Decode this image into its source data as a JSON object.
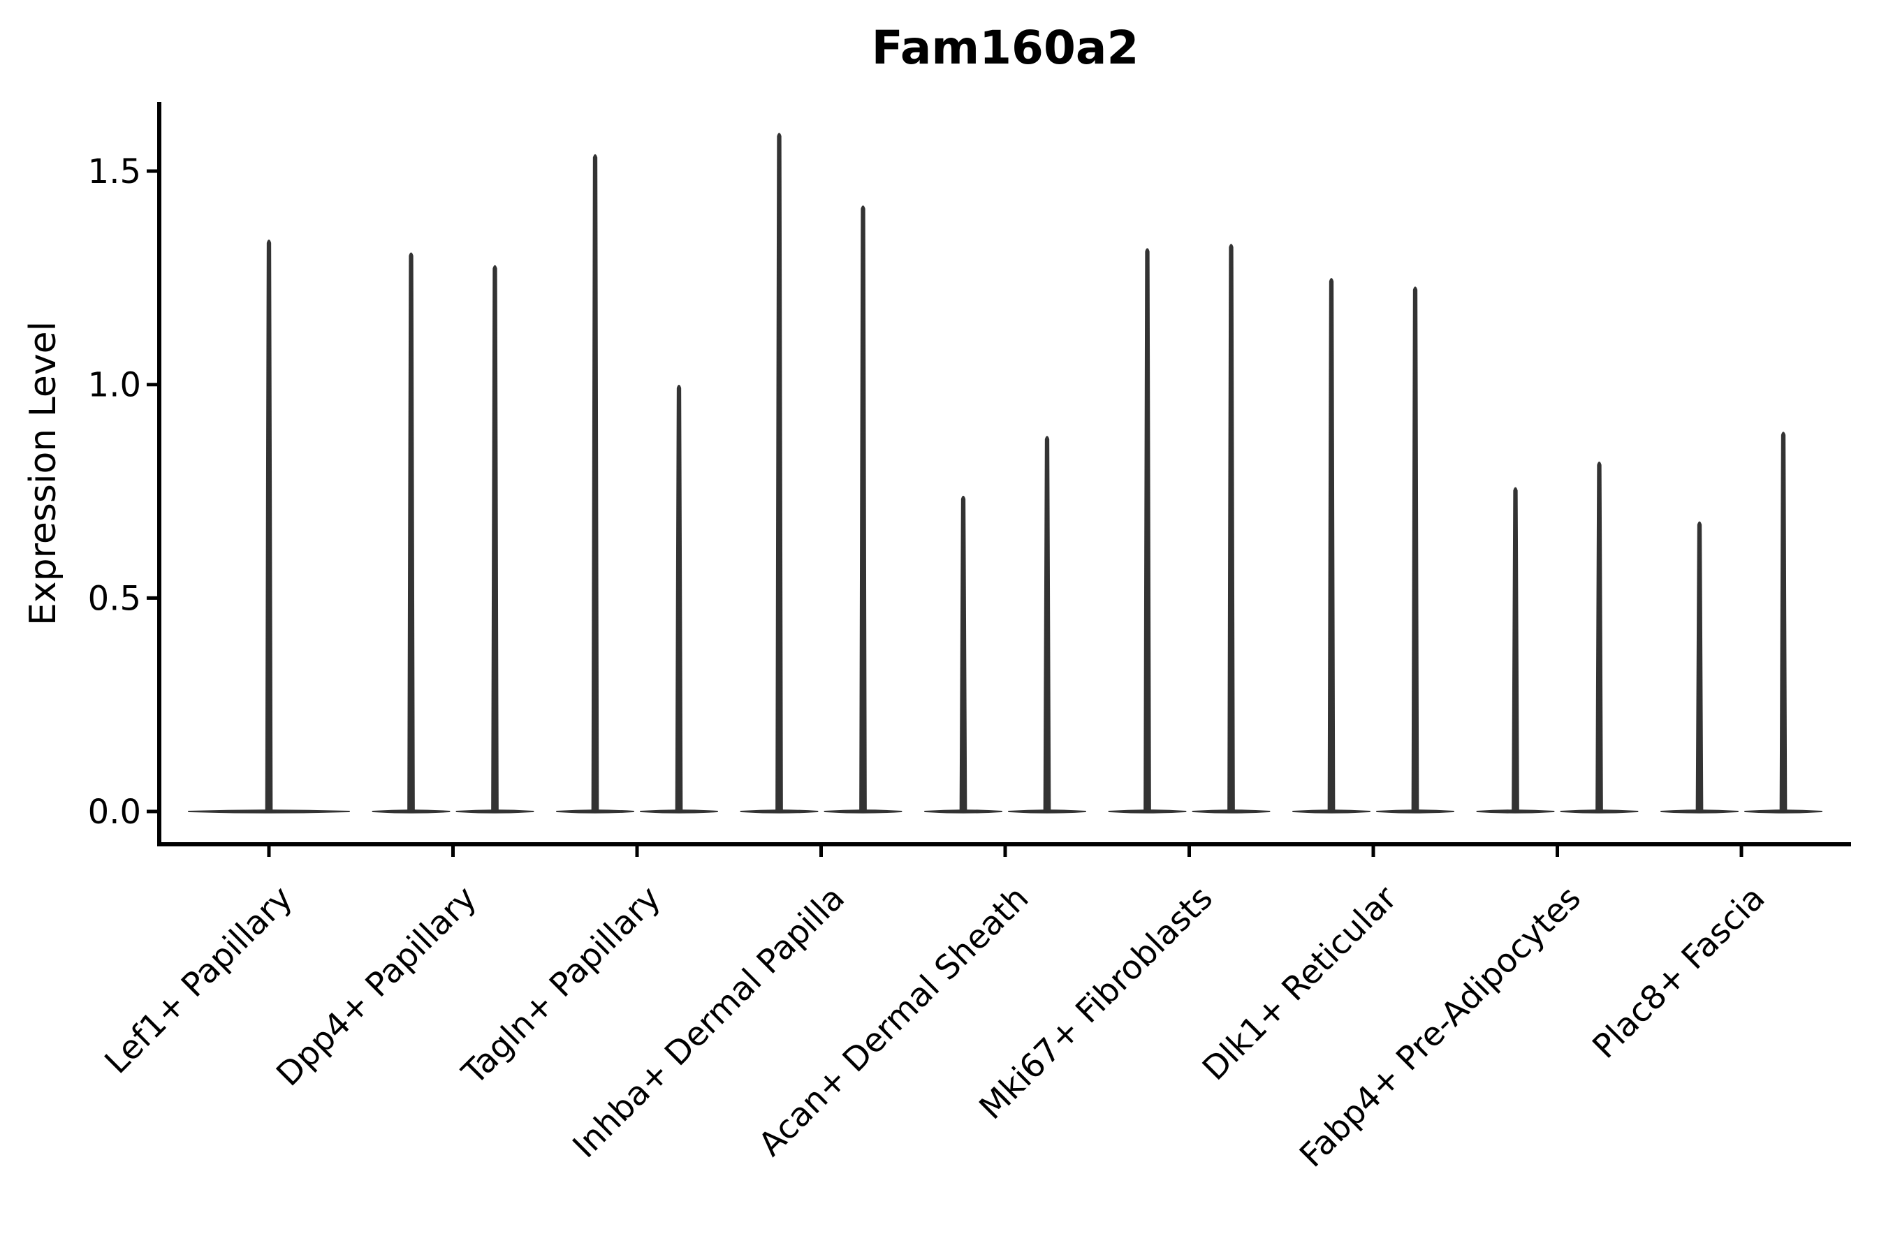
{
  "chart_data": {
    "type": "violin",
    "title": "Fam160a2",
    "ylabel": "Expression Level",
    "xlabel": "",
    "ytick_labels": [
      "0.0",
      "0.5",
      "1.0",
      "1.5"
    ],
    "ytick_values": [
      0.0,
      0.5,
      1.0,
      1.5
    ],
    "ylim": [
      -0.08,
      1.66
    ],
    "grid": "off",
    "legend": "none",
    "violin_color": "#333333",
    "axis_color": "#000000",
    "description": "Violin plot; each violin's density mass sits at 0 (flat wide base) with a thin vertical spike reaching its maximum expression value.",
    "categories": [
      {
        "label": "Lef1+ Papillary",
        "violins": [
          {
            "max": 1.34
          }
        ]
      },
      {
        "label": "Dpp4+ Papillary",
        "violins": [
          {
            "max": 1.31
          },
          {
            "max": 1.28
          }
        ]
      },
      {
        "label": "Tagln+ Papillary",
        "violins": [
          {
            "max": 1.54
          },
          {
            "max": 1.0
          }
        ]
      },
      {
        "label": "Inhba+ Dermal Papilla",
        "violins": [
          {
            "max": 1.59
          },
          {
            "max": 1.42
          }
        ]
      },
      {
        "label": "Acan+ Dermal Sheath",
        "violins": [
          {
            "max": 0.74
          },
          {
            "max": 0.88
          }
        ]
      },
      {
        "label": "Mki67+ Fibroblasts",
        "violins": [
          {
            "max": 1.32
          },
          {
            "max": 1.33
          }
        ]
      },
      {
        "label": "Dlk1+ Reticular",
        "violins": [
          {
            "max": 1.25
          },
          {
            "max": 1.23
          }
        ]
      },
      {
        "label": "Fabp4+ Pre-Adipocytes",
        "violins": [
          {
            "max": 0.76
          },
          {
            "max": 0.82
          }
        ]
      },
      {
        "label": "Plac8+ Fascia",
        "violins": [
          {
            "max": 0.68
          },
          {
            "max": 0.89
          }
        ]
      }
    ]
  }
}
